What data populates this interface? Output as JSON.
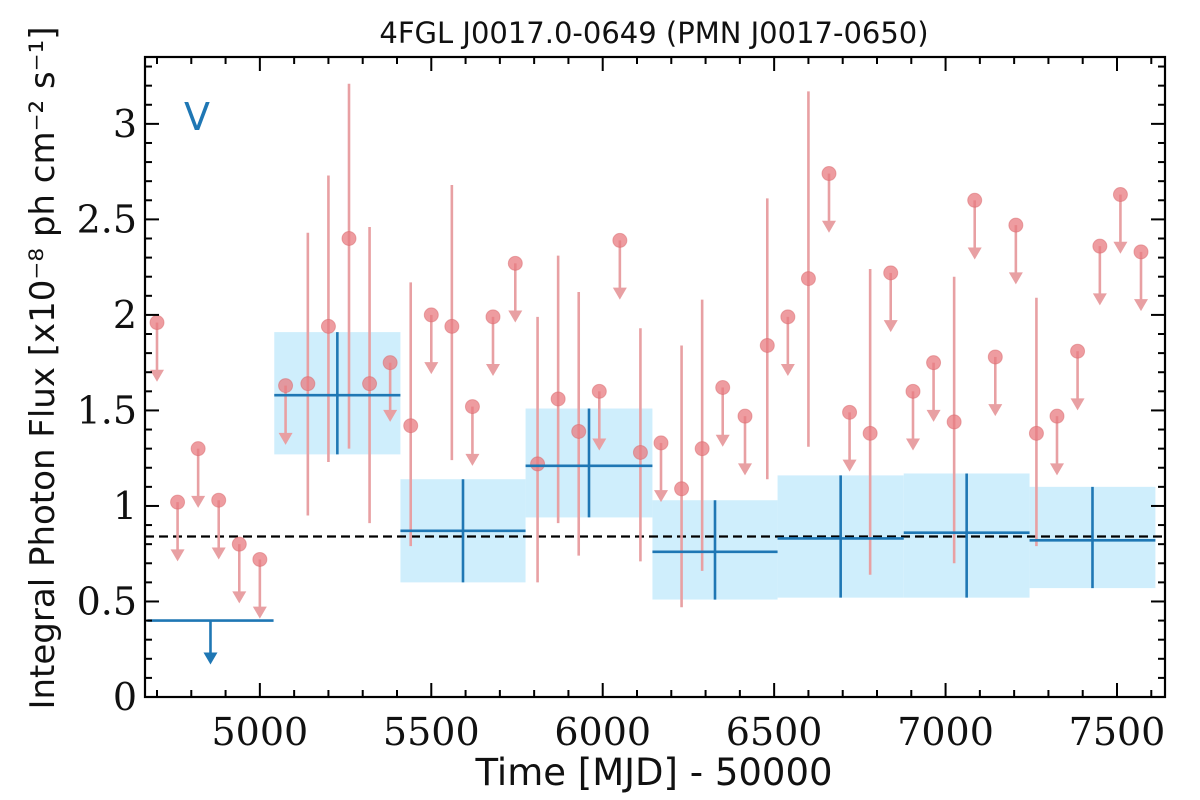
{
  "chart_data": {
    "type": "scatter",
    "title": "4FGL J0017.0-0649 (PMN J0017-0650)",
    "xlabel": "Time [MJD] - 50000",
    "ylabel": "Integral Photon Flux [x10⁻⁸ ph cm⁻² s⁻¹]",
    "panel_label": "V",
    "xlim": [
      4665,
      7640
    ],
    "ylim": [
      0,
      3.35
    ],
    "xticks": [
      5000,
      5500,
      6000,
      6500,
      7000,
      7500
    ],
    "xtick_labels": [
      "5000",
      "5500",
      "6000",
      "6500",
      "7000",
      "7500"
    ],
    "yticks": [
      0,
      0.5,
      1,
      1.5,
      2,
      2.5,
      3
    ],
    "ytick_labels": [
      "0",
      "0.5",
      "1",
      "1.5",
      "2",
      "2.5",
      "3"
    ],
    "reference_line": {
      "y": 0.84,
      "style": "dashed"
    },
    "colors": {
      "short_bins": "#e8a0a3",
      "short_bins_marker": "#e87b80",
      "long_bins": "#1f77b4",
      "band_fill": "#cfeefc"
    },
    "short_bins": [
      {
        "x": 4700,
        "y": 1.96,
        "ul": true
      },
      {
        "x": 4760,
        "y": 1.02,
        "ul": true
      },
      {
        "x": 4820,
        "y": 1.3,
        "ul": true
      },
      {
        "x": 4880,
        "y": 1.03,
        "ul": true
      },
      {
        "x": 4940,
        "y": 0.8,
        "ul": true
      },
      {
        "x": 5000,
        "y": 0.72,
        "ul": true
      },
      {
        "x": 5075,
        "y": 1.63,
        "ul": true
      },
      {
        "x": 5140,
        "y": 1.64,
        "lo": 0.95,
        "hi": 2.43
      },
      {
        "x": 5200,
        "y": 1.94,
        "lo": 1.23,
        "hi": 2.73
      },
      {
        "x": 5260,
        "y": 2.4,
        "lo": 1.3,
        "hi": 3.21
      },
      {
        "x": 5320,
        "y": 1.64,
        "lo": 0.91,
        "hi": 2.46
      },
      {
        "x": 5380,
        "y": 1.75,
        "ul": true
      },
      {
        "x": 5440,
        "y": 1.42,
        "lo": 0.79,
        "hi": 2.17
      },
      {
        "x": 5500,
        "y": 2.0,
        "ul": true
      },
      {
        "x": 5560,
        "y": 1.94,
        "lo": 1.24,
        "hi": 2.68
      },
      {
        "x": 5620,
        "y": 1.52,
        "ul": true
      },
      {
        "x": 5680,
        "y": 1.99,
        "ul": true
      },
      {
        "x": 5745,
        "y": 2.27,
        "ul": true
      },
      {
        "x": 5810,
        "y": 1.22,
        "lo": 0.6,
        "hi": 1.99
      },
      {
        "x": 5870,
        "y": 1.56,
        "lo": 0.91,
        "hi": 2.31
      },
      {
        "x": 5930,
        "y": 1.39,
        "lo": 0.74,
        "hi": 2.12
      },
      {
        "x": 5990,
        "y": 1.6,
        "ul": true
      },
      {
        "x": 6050,
        "y": 2.39,
        "ul": true
      },
      {
        "x": 6110,
        "y": 1.28,
        "lo": 0.71,
        "hi": 1.93
      },
      {
        "x": 6170,
        "y": 1.33,
        "ul": true
      },
      {
        "x": 6230,
        "y": 1.09,
        "lo": 0.47,
        "hi": 1.84
      },
      {
        "x": 6290,
        "y": 1.3,
        "lo": 0.66,
        "hi": 2.08
      },
      {
        "x": 6350,
        "y": 1.62,
        "ul": true
      },
      {
        "x": 6415,
        "y": 1.47,
        "ul": true
      },
      {
        "x": 6480,
        "y": 1.84,
        "lo": 1.14,
        "hi": 2.61
      },
      {
        "x": 6540,
        "y": 1.99,
        "ul": true
      },
      {
        "x": 6600,
        "y": 2.19,
        "lo": 1.31,
        "hi": 3.17
      },
      {
        "x": 6660,
        "y": 2.74,
        "ul": true
      },
      {
        "x": 6720,
        "y": 1.49,
        "ul": true
      },
      {
        "x": 6780,
        "y": 1.38,
        "lo": 0.64,
        "hi": 2.24
      },
      {
        "x": 6840,
        "y": 2.22,
        "ul": true
      },
      {
        "x": 6905,
        "y": 1.6,
        "ul": true
      },
      {
        "x": 6965,
        "y": 1.75,
        "ul": true
      },
      {
        "x": 7025,
        "y": 1.44,
        "lo": 0.7,
        "hi": 2.2
      },
      {
        "x": 7085,
        "y": 2.6,
        "ul": true
      },
      {
        "x": 7145,
        "y": 1.78,
        "ul": true
      },
      {
        "x": 7205,
        "y": 2.47,
        "ul": true
      },
      {
        "x": 7265,
        "y": 1.38,
        "lo": 0.79,
        "hi": 2.09
      },
      {
        "x": 7325,
        "y": 1.47,
        "ul": true
      },
      {
        "x": 7385,
        "y": 1.81,
        "ul": true
      },
      {
        "x": 7450,
        "y": 2.36,
        "ul": true
      },
      {
        "x": 7510,
        "y": 2.63,
        "ul": true
      },
      {
        "x": 7570,
        "y": 2.33,
        "ul": true
      }
    ],
    "long_bins": [
      {
        "x0": 4672,
        "x1": 5040,
        "y": 0.4,
        "ul": true
      },
      {
        "x0": 5042,
        "x1": 5410,
        "y": 1.58,
        "lo": 1.27,
        "hi": 1.91
      },
      {
        "x0": 5410,
        "x1": 5775,
        "y": 0.87,
        "lo": 0.6,
        "hi": 1.14
      },
      {
        "x0": 5775,
        "x1": 6145,
        "y": 1.21,
        "lo": 0.94,
        "hi": 1.51
      },
      {
        "x0": 6145,
        "x1": 6510,
        "y": 0.76,
        "lo": 0.51,
        "hi": 1.03
      },
      {
        "x0": 6510,
        "x1": 6878,
        "y": 0.83,
        "lo": 0.52,
        "hi": 1.16
      },
      {
        "x0": 6878,
        "x1": 7245,
        "y": 0.86,
        "lo": 0.52,
        "hi": 1.17
      },
      {
        "x0": 7245,
        "x1": 7612,
        "y": 0.82,
        "lo": 0.57,
        "hi": 1.1
      }
    ]
  }
}
